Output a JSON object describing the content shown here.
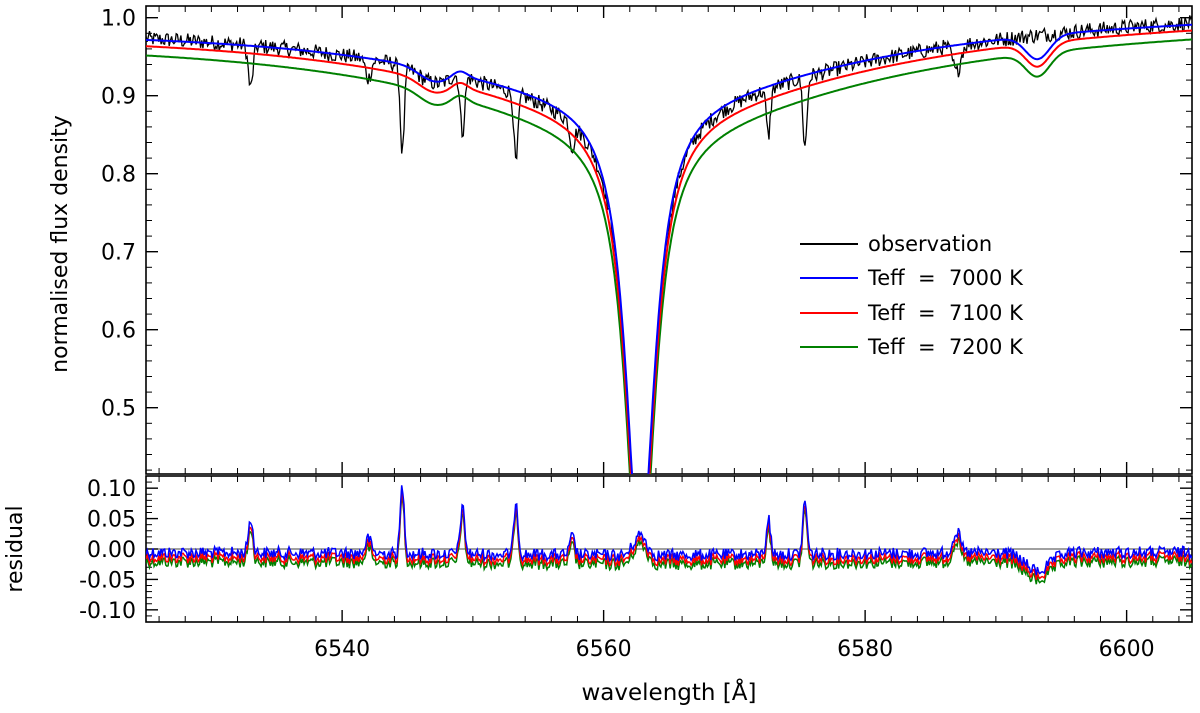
{
  "chart_data": [
    {
      "type": "line",
      "panel": "main",
      "xlabel": "wavelength [Å]",
      "ylabel": "normalised flux density",
      "xlim": [
        6525,
        6605
      ],
      "ylim": [
        0.415,
        1.015
      ],
      "xticks": [
        6540,
        6560,
        6580,
        6600
      ],
      "yticks": [
        0.5,
        0.6,
        0.7,
        0.8,
        0.9,
        1.0
      ],
      "ytick_labels": [
        "0.5",
        "0.6",
        "0.7",
        "0.8",
        "0.9",
        "1.0"
      ],
      "legend_position": "right",
      "series": [
        {
          "name": "observation",
          "color": "#000000"
        },
        {
          "name": "Teff  =  7000 K",
          "color": "#0000ff"
        },
        {
          "name": "Teff  =  7100 K",
          "color": "#ff0000"
        },
        {
          "name": "Teff  =  7200 K",
          "color": "#008000"
        }
      ],
      "approx_values": {
        "model_7000_K": [
          [
            6525,
            0.97
          ],
          [
            6530,
            0.96
          ],
          [
            6535,
            0.955
          ],
          [
            6540,
            0.94
          ],
          [
            6545,
            0.91
          ],
          [
            6548,
            0.902
          ],
          [
            6550,
            0.89
          ],
          [
            6552,
            0.87
          ],
          [
            6554,
            0.84
          ],
          [
            6556,
            0.79
          ],
          [
            6558,
            0.73
          ],
          [
            6560,
            0.64
          ],
          [
            6562,
            0.505
          ],
          [
            6562.8,
            0.455
          ],
          [
            6564,
            0.56
          ],
          [
            6566,
            0.66
          ],
          [
            6568,
            0.75
          ],
          [
            6570,
            0.81
          ],
          [
            6572,
            0.85
          ],
          [
            6575,
            0.88
          ],
          [
            6580,
            0.91
          ],
          [
            6585,
            0.93
          ],
          [
            6590,
            0.955
          ],
          [
            6592,
            0.94
          ],
          [
            6593.2,
            0.92
          ],
          [
            6595,
            0.955
          ],
          [
            6600,
            0.97
          ],
          [
            6605,
            0.97
          ]
        ],
        "model_7100_K": [
          [
            6525,
            0.968
          ],
          [
            6540,
            0.935
          ],
          [
            6550,
            0.883
          ],
          [
            6556,
            0.782
          ],
          [
            6560,
            0.632
          ],
          [
            6562.8,
            0.45
          ],
          [
            6566,
            0.652
          ],
          [
            6570,
            0.802
          ],
          [
            6575,
            0.872
          ],
          [
            6580,
            0.903
          ],
          [
            6590,
            0.95
          ],
          [
            6593.2,
            0.918
          ],
          [
            6600,
            0.968
          ],
          [
            6605,
            0.968
          ]
        ],
        "model_7200_K": [
          [
            6525,
            0.965
          ],
          [
            6540,
            0.928
          ],
          [
            6550,
            0.876
          ],
          [
            6556,
            0.774
          ],
          [
            6560,
            0.624
          ],
          [
            6562.8,
            0.445
          ],
          [
            6566,
            0.644
          ],
          [
            6570,
            0.794
          ],
          [
            6575,
            0.864
          ],
          [
            6580,
            0.896
          ],
          [
            6590,
            0.945
          ],
          [
            6593.2,
            0.916
          ],
          [
            6600,
            0.966
          ],
          [
            6605,
            0.966
          ]
        ],
        "observation_line_dips": [
          [
            6533,
            0.905
          ],
          [
            6544.6,
            0.818
          ],
          [
            6549.2,
            0.82
          ],
          [
            6553.3,
            0.765
          ],
          [
            6572.6,
            0.82
          ],
          [
            6575.4,
            0.79
          ]
        ],
        "observation_core_minimum": [
          6562.8,
          0.42
        ]
      }
    },
    {
      "type": "line",
      "panel": "residual",
      "xlabel": "wavelength [Å]",
      "ylabel": "residual",
      "xlim": [
        6525,
        6605
      ],
      "ylim": [
        -0.12,
        0.12
      ],
      "xticks": [
        6540,
        6560,
        6580,
        6600
      ],
      "yticks": [
        -0.1,
        -0.05,
        0.0,
        0.05,
        0.1
      ],
      "ytick_labels": [
        "-0.10",
        "-0.05",
        "0.00",
        "0.05",
        "0.10"
      ],
      "series": [
        {
          "name": "Teff  =  7000 K",
          "color": "#0000ff",
          "offset": 0.005
        },
        {
          "name": "Teff  =  7100 K",
          "color": "#ff0000",
          "offset": 0.0
        },
        {
          "name": "Teff  =  7200 K",
          "color": "#008000",
          "offset": -0.007
        }
      ],
      "approx_residual_peaks": [
        [
          6533,
          0.05
        ],
        [
          6544.6,
          0.105
        ],
        [
          6549.2,
          0.075
        ],
        [
          6553.3,
          0.085
        ],
        [
          6562.8,
          0.03
        ],
        [
          6572.6,
          0.06
        ],
        [
          6575.4,
          0.09
        ],
        [
          6587,
          0.035
        ]
      ]
    }
  ]
}
